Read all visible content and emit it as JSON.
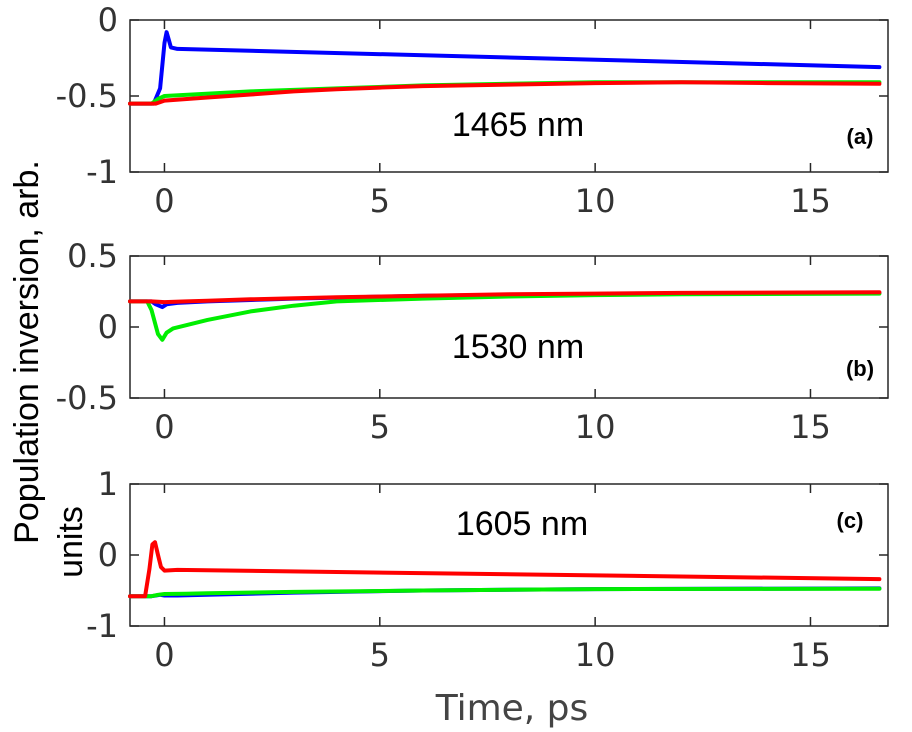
{
  "chart_data": {
    "type": "line",
    "ylabel_line1": "Population inversion, arb.",
    "ylabel_line2": "units",
    "xlabel": "Time, ps",
    "xlim": [
      -0.8,
      16.8
    ],
    "xticks": [
      0,
      5,
      10,
      15
    ],
    "colors": {
      "blue": "#0000ff",
      "green": "#00ee00",
      "red": "#ff0000"
    },
    "panels": [
      {
        "panel_label": "(a)",
        "annotation": "1465 nm",
        "ylim": [
          -1,
          0
        ],
        "yticks": [
          0,
          -0.5,
          -1
        ],
        "ytick_labels": [
          "0",
          "-0.5",
          "-1"
        ],
        "series": [
          {
            "name": "blue",
            "points": [
              [
                -0.8,
                -0.55
              ],
              [
                -0.25,
                -0.55
              ],
              [
                -0.1,
                -0.45
              ],
              [
                0.0,
                -0.15
              ],
              [
                0.05,
                -0.08
              ],
              [
                0.1,
                -0.13
              ],
              [
                0.15,
                -0.18
              ],
              [
                0.3,
                -0.19
              ],
              [
                16.6,
                -0.31
              ]
            ]
          },
          {
            "name": "green",
            "points": [
              [
                -0.8,
                -0.55
              ],
              [
                -0.3,
                -0.55
              ],
              [
                -0.15,
                -0.52
              ],
              [
                0.0,
                -0.5
              ],
              [
                2,
                -0.47
              ],
              [
                4,
                -0.45
              ],
              [
                6,
                -0.43
              ],
              [
                8,
                -0.42
              ],
              [
                10,
                -0.41
              ],
              [
                12,
                -0.41
              ],
              [
                14,
                -0.41
              ],
              [
                16.6,
                -0.41
              ]
            ]
          },
          {
            "name": "red",
            "points": [
              [
                -0.8,
                -0.55
              ],
              [
                -0.2,
                -0.55
              ],
              [
                0,
                -0.53
              ],
              [
                1,
                -0.51
              ],
              [
                2,
                -0.49
              ],
              [
                3,
                -0.47
              ],
              [
                4,
                -0.455
              ],
              [
                5,
                -0.445
              ],
              [
                6,
                -0.435
              ],
              [
                8,
                -0.425
              ],
              [
                10,
                -0.415
              ],
              [
                12,
                -0.41
              ],
              [
                14,
                -0.415
              ],
              [
                16.6,
                -0.42
              ]
            ]
          }
        ]
      },
      {
        "panel_label": "(b)",
        "annotation": "1530 nm",
        "ylim": [
          -0.5,
          0.5
        ],
        "yticks": [
          0.5,
          0,
          -0.5
        ],
        "ytick_labels": [
          "0.5",
          "0",
          "-0.5"
        ],
        "series": [
          {
            "name": "blue",
            "points": [
              [
                -0.8,
                0.18
              ],
              [
                -0.3,
                0.18
              ],
              [
                -0.2,
                0.16
              ],
              [
                -0.05,
                0.14
              ],
              [
                0.05,
                0.16
              ],
              [
                0.3,
                0.17
              ],
              [
                1,
                0.18
              ],
              [
                3,
                0.2
              ],
              [
                6,
                0.22
              ],
              [
                10,
                0.23
              ],
              [
                16.6,
                0.24
              ]
            ]
          },
          {
            "name": "green",
            "points": [
              [
                -0.8,
                0.18
              ],
              [
                -0.4,
                0.18
              ],
              [
                -0.3,
                0.12
              ],
              [
                -0.15,
                -0.05
              ],
              [
                -0.05,
                -0.09
              ],
              [
                0.05,
                -0.04
              ],
              [
                0.2,
                -0.01
              ],
              [
                1,
                0.05
              ],
              [
                2,
                0.11
              ],
              [
                3,
                0.15
              ],
              [
                4,
                0.18
              ],
              [
                6,
                0.2
              ],
              [
                8,
                0.215
              ],
              [
                10,
                0.225
              ],
              [
                12,
                0.23
              ],
              [
                16.6,
                0.235
              ]
            ]
          },
          {
            "name": "red",
            "points": [
              [
                -0.8,
                0.18
              ],
              [
                -0.3,
                0.18
              ],
              [
                0,
                0.175
              ],
              [
                0.5,
                0.18
              ],
              [
                1,
                0.185
              ],
              [
                2,
                0.195
              ],
              [
                4,
                0.21
              ],
              [
                6,
                0.22
              ],
              [
                8,
                0.23
              ],
              [
                10,
                0.235
              ],
              [
                12,
                0.24
              ],
              [
                16.6,
                0.245
              ]
            ]
          }
        ]
      },
      {
        "panel_label": "(c)",
        "annotation": "1605 nm",
        "ylim": [
          -1,
          1
        ],
        "yticks": [
          1,
          0,
          -1
        ],
        "ytick_labels": [
          "1",
          "0",
          "-1"
        ],
        "series": [
          {
            "name": "blue",
            "points": [
              [
                -0.8,
                -0.58
              ],
              [
                -0.3,
                -0.58
              ],
              [
                -0.2,
                -0.57
              ],
              [
                -0.1,
                -0.56
              ],
              [
                0,
                -0.57
              ],
              [
                0.3,
                -0.57
              ],
              [
                1,
                -0.56
              ],
              [
                3,
                -0.53
              ],
              [
                6,
                -0.5
              ],
              [
                10,
                -0.48
              ],
              [
                16.6,
                -0.47
              ]
            ]
          },
          {
            "name": "green",
            "points": [
              [
                -0.8,
                -0.58
              ],
              [
                -0.3,
                -0.58
              ],
              [
                -0.15,
                -0.56
              ],
              [
                0,
                -0.55
              ],
              [
                0.5,
                -0.545
              ],
              [
                1,
                -0.54
              ],
              [
                3,
                -0.52
              ],
              [
                6,
                -0.5
              ],
              [
                10,
                -0.48
              ],
              [
                16.6,
                -0.475
              ]
            ]
          },
          {
            "name": "red",
            "points": [
              [
                -0.8,
                -0.58
              ],
              [
                -0.45,
                -0.58
              ],
              [
                -0.35,
                -0.2
              ],
              [
                -0.28,
                0.15
              ],
              [
                -0.22,
                0.18
              ],
              [
                -0.15,
                0.0
              ],
              [
                -0.08,
                -0.17
              ],
              [
                0.0,
                -0.22
              ],
              [
                0.3,
                -0.21
              ],
              [
                16.6,
                -0.34
              ]
            ]
          }
        ]
      }
    ]
  }
}
